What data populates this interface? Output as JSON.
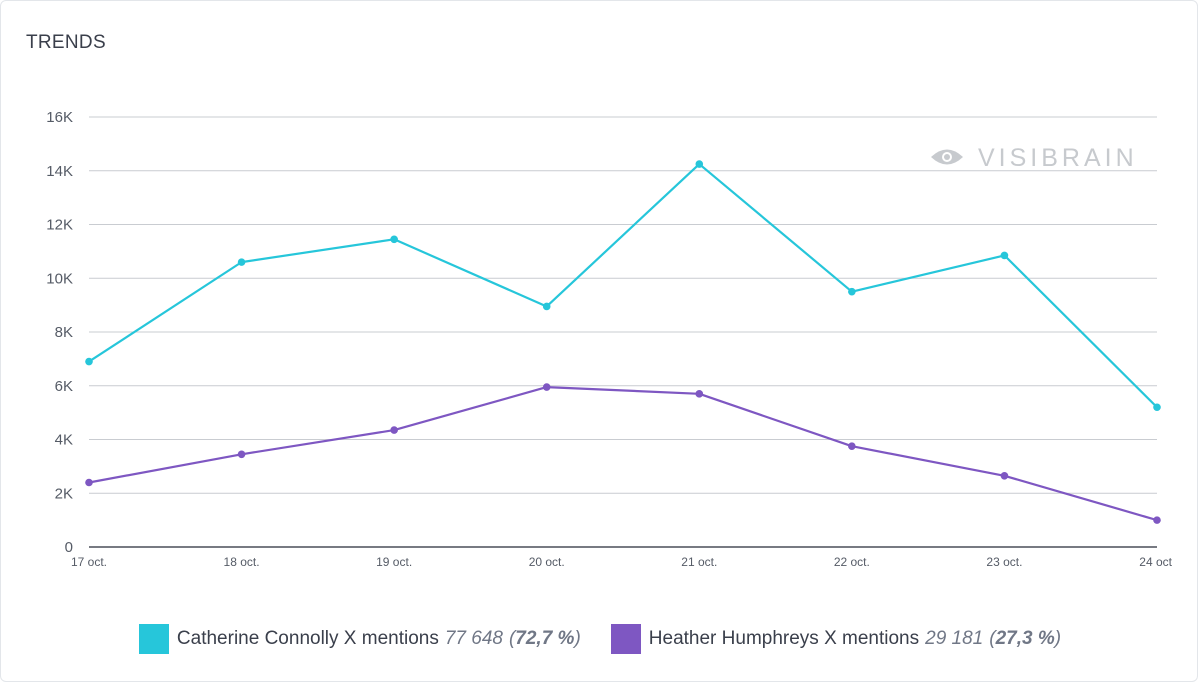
{
  "header": {
    "title": "TRENDS"
  },
  "watermark": {
    "text": "VISIBRAIN",
    "icon": "eye-logo-icon"
  },
  "chart_data": {
    "type": "line",
    "title": "TRENDS",
    "categories": [
      "17 oct.",
      "18 oct.",
      "19 oct.",
      "20 oct.",
      "21 oct.",
      "22 oct.",
      "23 oct.",
      "24 oct"
    ],
    "ylim": [
      0,
      16000
    ],
    "yticks": [
      0,
      2000,
      4000,
      6000,
      8000,
      10000,
      12000,
      14000,
      16000
    ],
    "ytick_labels": [
      "0",
      "2K",
      "4K",
      "6K",
      "8K",
      "10K",
      "12K",
      "14K",
      "16K"
    ],
    "grid": true,
    "legend_position": "bottom-center",
    "series": [
      {
        "name": "Catherine Connolly X mentions",
        "color": "#26c6da",
        "values": [
          6900,
          10600,
          11450,
          8950,
          14250,
          9500,
          10850,
          5200
        ],
        "total": "77 648",
        "pct_open": "(",
        "pct": "72,7 %",
        "pct_close": ")"
      },
      {
        "name": "Heather Humphreys X mentions",
        "color": "#7e57c2",
        "values": [
          2400,
          3450,
          4350,
          5950,
          5700,
          3750,
          2650,
          1000
        ],
        "total": "29 181",
        "pct_open": "(",
        "pct": "27,3 %",
        "pct_close": ")"
      }
    ]
  }
}
